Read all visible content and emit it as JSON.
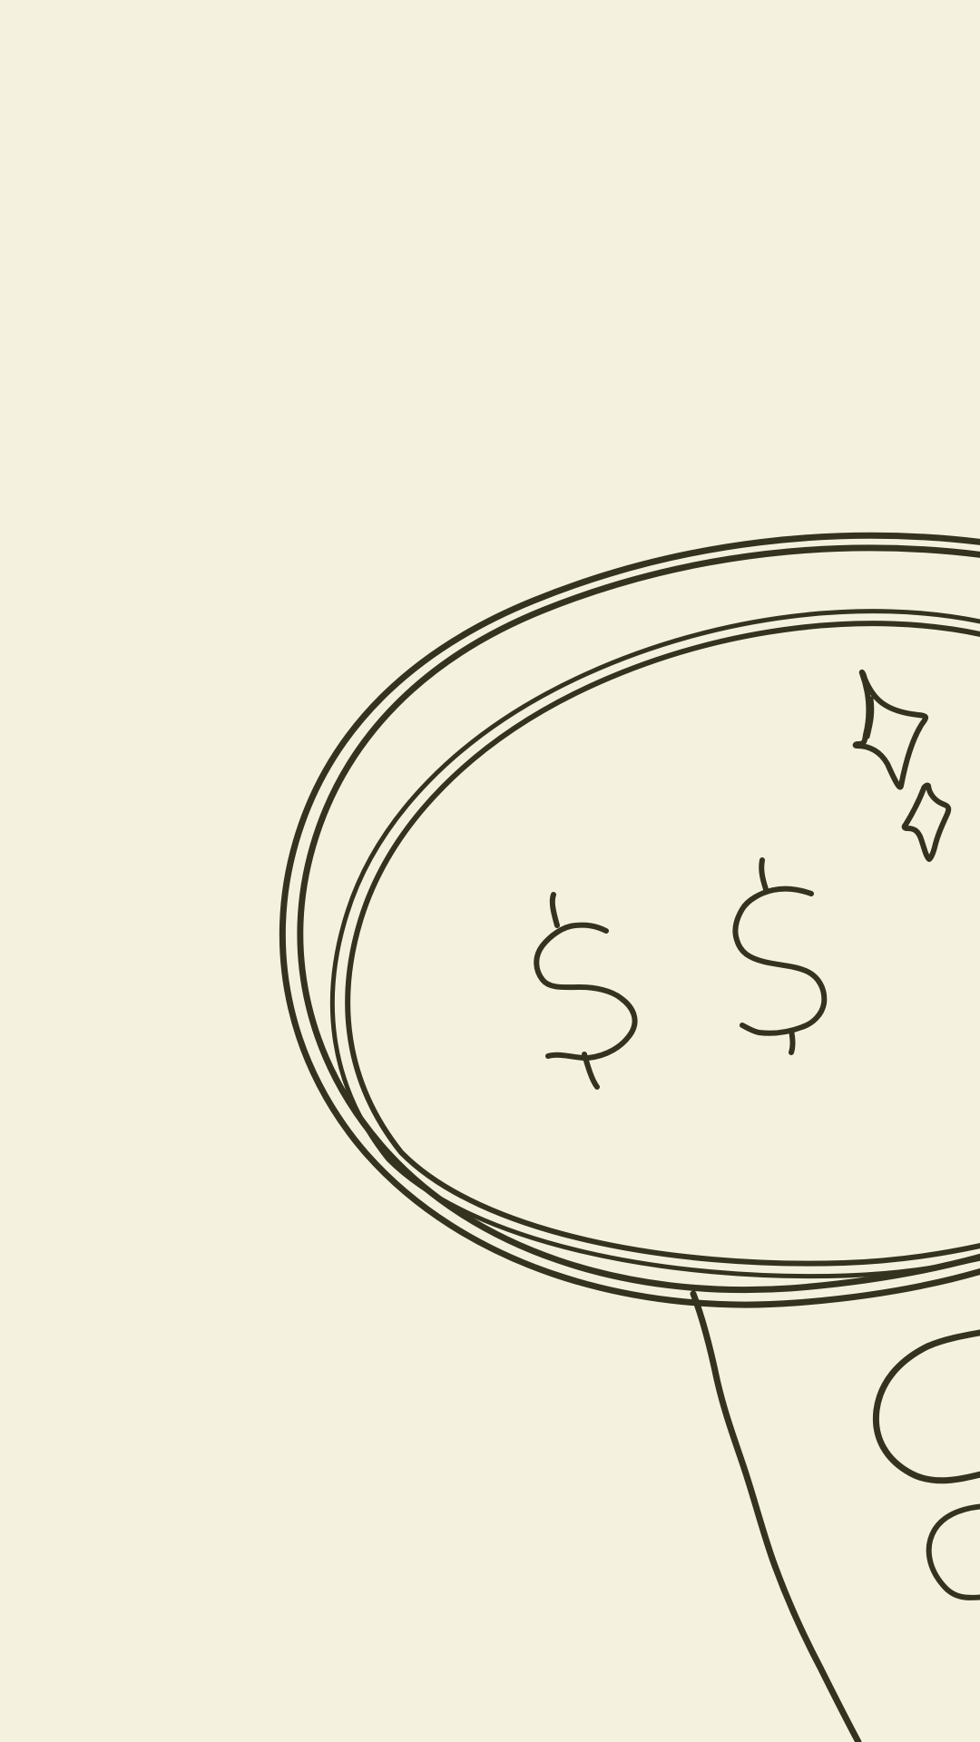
{
  "illustration": {
    "subject": "magnifying-glass-over-money",
    "background_color": "#f4f2df",
    "line_color": "#34331f",
    "symbols": [
      "$",
      "$"
    ],
    "sparkle_count": 2
  }
}
